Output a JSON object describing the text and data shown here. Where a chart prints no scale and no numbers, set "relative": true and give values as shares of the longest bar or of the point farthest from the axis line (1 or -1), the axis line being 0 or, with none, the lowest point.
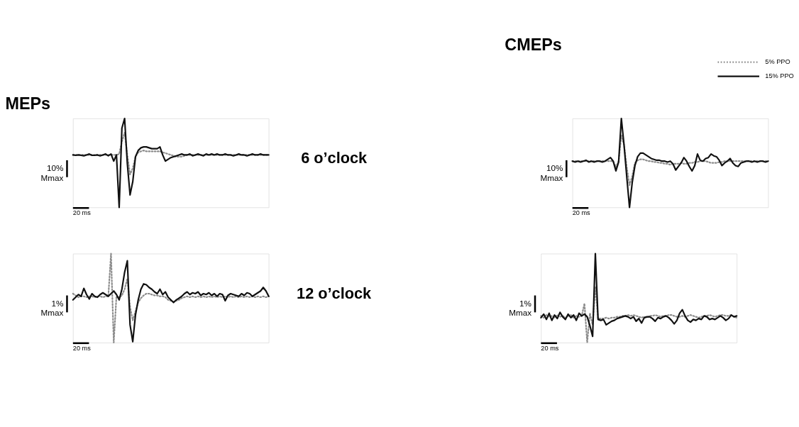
{
  "chart_data": [
    {
      "type": "line",
      "title": "MEPs",
      "relative": true,
      "tick_labels": false,
      "annotations": [
        "10%\nMmax",
        "20 ms",
        "6 o’clock"
      ],
      "categories": [
        null,
        null,
        null,
        null,
        null,
        null,
        null,
        null,
        null,
        null,
        null,
        null,
        null,
        null,
        null,
        null,
        null,
        null,
        null,
        null,
        null,
        null,
        null,
        null,
        null,
        null,
        null,
        null,
        null,
        null,
        null,
        null,
        null,
        null,
        null,
        null,
        null,
        null,
        null,
        null,
        null,
        null,
        null,
        null,
        null,
        null,
        null,
        null,
        null,
        null,
        null,
        null,
        null,
        null,
        null,
        null,
        null,
        null,
        null,
        null,
        null,
        null,
        null,
        null,
        null,
        null,
        null,
        null,
        null,
        null,
        null,
        null,
        null
      ],
      "series": [
        {
          "color": "#8c8c8c",
          "line_style": "dotted",
          "values": [
            0.59,
            0.59,
            0.59,
            0.59,
            0.59,
            0.59,
            0.59,
            0.59,
            0.59,
            0.59,
            0.59,
            0.59,
            0.59,
            0.59,
            0.59,
            0.59,
            0.59,
            0.6,
            0.74,
            0.84,
            0.59,
            0.37,
            0.44,
            0.57,
            0.62,
            0.63,
            0.64,
            0.63,
            0.63,
            0.63,
            0.63,
            0.63,
            0.63,
            0.62,
            0.61,
            0.6,
            0.59,
            0.58,
            0.57,
            0.57,
            0.57,
            0.58,
            0.59,
            0.59,
            0.59,
            0.59,
            0.59,
            0.59,
            0.59,
            0.59,
            0.59,
            0.59,
            0.59,
            0.59,
            0.59,
            0.59,
            0.59,
            0.59,
            0.59,
            0.59,
            0.59,
            0.59,
            0.59,
            0.59,
            0.59,
            0.59,
            0.59,
            0.59,
            0.59,
            0.59,
            0.59,
            0.59,
            0.59
          ]
        },
        {
          "color": "#111111",
          "line_style": "solid",
          "values": [
            0.59,
            0.585,
            0.59,
            0.585,
            0.58,
            0.59,
            0.6,
            0.585,
            0.585,
            0.59,
            0.58,
            0.59,
            0.6,
            0.58,
            0.6,
            0.52,
            0.59,
            0,
            0.89,
            1,
            0.49,
            0.14,
            0.29,
            0.57,
            0.64,
            0.67,
            0.68,
            0.68,
            0.67,
            0.66,
            0.66,
            0.66,
            0.68,
            0.59,
            0.52,
            0.54,
            0.56,
            0.57,
            0.58,
            0.59,
            0.6,
            0.59,
            0.59,
            0.6,
            0.58,
            0.59,
            0.6,
            0.59,
            0.58,
            0.6,
            0.59,
            0.6,
            0.59,
            0.6,
            0.59,
            0.59,
            0.6,
            0.59,
            0.59,
            0.58,
            0.59,
            0.6,
            0.59,
            0.59,
            0.58,
            0.59,
            0.6,
            0.59,
            0.59,
            0.6,
            0.59,
            0.59,
            0.59
          ]
        }
      ]
    },
    {
      "type": "line",
      "title": "CMEPs",
      "relative": true,
      "tick_labels": false,
      "legend": "top right",
      "annotations": [
        "10%\nMmax",
        "20 ms"
      ],
      "categories": [
        null,
        null,
        null,
        null,
        null,
        null,
        null,
        null,
        null,
        null,
        null,
        null,
        null,
        null,
        null,
        null,
        null,
        null,
        null,
        null,
        null,
        null,
        null,
        null,
        null,
        null,
        null,
        null,
        null,
        null,
        null,
        null,
        null,
        null,
        null,
        null,
        null,
        null,
        null,
        null,
        null,
        null,
        null,
        null,
        null,
        null,
        null,
        null,
        null,
        null,
        null,
        null,
        null,
        null,
        null,
        null,
        null,
        null,
        null,
        null,
        null,
        null,
        null,
        null,
        null,
        null,
        null,
        null,
        null,
        null,
        null,
        null,
        null
      ],
      "series": [
        {
          "name": "5% PPO",
          "color": "#8c8c8c",
          "line_style": "dotted",
          "values": [
            0.52,
            0.52,
            0.52,
            0.52,
            0.52,
            0.52,
            0.52,
            0.52,
            0.52,
            0.52,
            0.52,
            0.52,
            0.52,
            0.52,
            0.52,
            0.52,
            0.45,
            0.52,
            0.81,
            0.7,
            0.45,
            0.25,
            0.35,
            0.5,
            0.53,
            0.54,
            0.54,
            0.53,
            0.52,
            0.52,
            0.51,
            0.51,
            0.5,
            0.5,
            0.49,
            0.49,
            0.48,
            0.49,
            0.49,
            0.49,
            0.5,
            0.49,
            0.49,
            0.5,
            0.5,
            0.51,
            0.51,
            0.52,
            0.52,
            0.52,
            0.51,
            0.5,
            0.5,
            0.5,
            0.51,
            0.51,
            0.52,
            0.52,
            0.52,
            0.52,
            0.52,
            0.52,
            0.52,
            0.52,
            0.52,
            0.52,
            0.52,
            0.52,
            0.52,
            0.52,
            0.52,
            0.52,
            0.52
          ]
        },
        {
          "name": "15% PPO",
          "color": "#111111",
          "line_style": "solid",
          "values": [
            0.52,
            0.51,
            0.52,
            0.51,
            0.52,
            0.53,
            0.51,
            0.52,
            0.51,
            0.52,
            0.52,
            0.51,
            0.52,
            0.54,
            0.56,
            0.52,
            0.41,
            0.51,
            1,
            0.7,
            0.34,
            0,
            0.28,
            0.47,
            0.57,
            0.61,
            0.61,
            0.59,
            0.57,
            0.55,
            0.54,
            0.53,
            0.53,
            0.52,
            0.52,
            0.51,
            0.52,
            0.49,
            0.42,
            0.46,
            0.5,
            0.56,
            0.52,
            0.46,
            0.41,
            0.47,
            0.6,
            0.53,
            0.52,
            0.55,
            0.56,
            0.6,
            0.58,
            0.57,
            0.53,
            0.47,
            0.5,
            0.52,
            0.55,
            0.5,
            0.47,
            0.46,
            0.5,
            0.51,
            0.52,
            0.52,
            0.51,
            0.52,
            0.51,
            0.52,
            0.52,
            0.51,
            0.52
          ]
        }
      ]
    },
    {
      "type": "line",
      "relative": true,
      "tick_labels": false,
      "annotations": [
        "1%\nMmax",
        "20 ms",
        "12 o’clock"
      ],
      "categories": [
        null,
        null,
        null,
        null,
        null,
        null,
        null,
        null,
        null,
        null,
        null,
        null,
        null,
        null,
        null,
        null,
        null,
        null,
        null,
        null,
        null,
        null,
        null,
        null,
        null,
        null,
        null,
        null,
        null,
        null,
        null,
        null,
        null,
        null,
        null,
        null,
        null,
        null,
        null,
        null,
        null,
        null,
        null,
        null,
        null,
        null,
        null,
        null,
        null,
        null,
        null,
        null,
        null,
        null,
        null,
        null,
        null,
        null,
        null,
        null,
        null,
        null,
        null,
        null,
        null,
        null,
        null,
        null,
        null,
        null,
        null,
        null,
        null
      ],
      "series": [
        {
          "color": "#8c8c8c",
          "line_style": "dotted",
          "values": [
            0.55,
            0.53,
            0.51,
            0.52,
            0.52,
            0.51,
            0.52,
            0.52,
            0.51,
            0.52,
            0.52,
            0.51,
            0.52,
            0.52,
            1,
            0,
            0.52,
            0.51,
            0.53,
            0.6,
            0.72,
            0.4,
            0.25,
            0.35,
            0.45,
            0.5,
            0.53,
            0.55,
            0.55,
            0.54,
            0.53,
            0.53,
            0.52,
            0.52,
            0.51,
            0.48,
            0.47,
            0.46,
            0.47,
            0.48,
            0.5,
            0.51,
            0.52,
            0.51,
            0.52,
            0.51,
            0.52,
            0.51,
            0.52,
            0.51,
            0.52,
            0.51,
            0.52,
            0.51,
            0.52,
            0.51,
            0.52,
            0.51,
            0.52,
            0.51,
            0.52,
            0.51,
            0.52,
            0.51,
            0.52,
            0.51,
            0.52,
            0.51,
            0.52,
            0.51,
            0.52,
            0.51,
            0.52
          ]
        },
        {
          "color": "#111111",
          "line_style": "solid",
          "values": [
            0.48,
            0.51,
            0.54,
            0.52,
            0.61,
            0.54,
            0.49,
            0.55,
            0.52,
            0.51,
            0.54,
            0.56,
            0.54,
            0.52,
            0.55,
            0.58,
            0.54,
            0.48,
            0.6,
            0.79,
            0.92,
            0.2,
            0.01,
            0.31,
            0.48,
            0.6,
            0.66,
            0.65,
            0.62,
            0.6,
            0.57,
            0.55,
            0.6,
            0.54,
            0.57,
            0.51,
            0.48,
            0.45,
            0.48,
            0.5,
            0.52,
            0.55,
            0.57,
            0.54,
            0.56,
            0.55,
            0.57,
            0.53,
            0.55,
            0.54,
            0.56,
            0.53,
            0.55,
            0.52,
            0.55,
            0.54,
            0.47,
            0.53,
            0.55,
            0.54,
            0.53,
            0.52,
            0.55,
            0.53,
            0.56,
            0.55,
            0.52,
            0.54,
            0.56,
            0.58,
            0.62,
            0.58,
            0.52
          ]
        }
      ]
    },
    {
      "type": "line",
      "relative": true,
      "tick_labels": false,
      "annotations": [
        "1%\nMmax",
        "20 ms"
      ],
      "categories": [
        null,
        null,
        null,
        null,
        null,
        null,
        null,
        null,
        null,
        null,
        null,
        null,
        null,
        null,
        null,
        null,
        null,
        null,
        null,
        null,
        null,
        null,
        null,
        null,
        null,
        null,
        null,
        null,
        null,
        null,
        null,
        null,
        null,
        null,
        null,
        null,
        null,
        null,
        null,
        null,
        null,
        null,
        null,
        null,
        null,
        null,
        null,
        null,
        null,
        null,
        null,
        null,
        null,
        null,
        null,
        null,
        null,
        null,
        null,
        null,
        null,
        null,
        null,
        null,
        null,
        null,
        null,
        null,
        null,
        null,
        null,
        null,
        null
      ],
      "series": [
        {
          "color": "#8c8c8c",
          "line_style": "dotted",
          "values": [
            0.3,
            0.28,
            0.31,
            0.29,
            0.3,
            0.28,
            0.31,
            0.29,
            0.3,
            0.28,
            0.3,
            0.31,
            0.28,
            0.3,
            0.29,
            0.3,
            0.44,
            0,
            0.33,
            0.2,
            0.63,
            0.27,
            0.27,
            0.27,
            0.28,
            0.27,
            0.28,
            0.28,
            0.29,
            0.29,
            0.3,
            0.3,
            0.31,
            0.3,
            0.31,
            0.3,
            0.29,
            0.28,
            0.29,
            0.28,
            0.3,
            0.3,
            0.31,
            0.3,
            0.29,
            0.3,
            0.3,
            0.31,
            0.31,
            0.3,
            0.29,
            0.29,
            0.3,
            0.29,
            0.3,
            0.31,
            0.3,
            0.29,
            0.28,
            0.29,
            0.3,
            0.3,
            0.31,
            0.3,
            0.29,
            0.3,
            0.31,
            0.31,
            0.3,
            0.3,
            0.31,
            0.29,
            0.28
          ]
        },
        {
          "color": "#111111",
          "line_style": "solid",
          "values": [
            0.28,
            0.32,
            0.26,
            0.33,
            0.25,
            0.31,
            0.27,
            0.34,
            0.29,
            0.26,
            0.32,
            0.28,
            0.31,
            0.25,
            0.33,
            0.3,
            0.32,
            0.29,
            0.19,
            0.07,
            1,
            0.26,
            0.25,
            0.26,
            0.2,
            0.22,
            0.24,
            0.25,
            0.27,
            0.28,
            0.29,
            0.3,
            0.29,
            0.27,
            0.29,
            0.24,
            0.27,
            0.22,
            0.28,
            0.29,
            0.29,
            0.27,
            0.24,
            0.28,
            0.27,
            0.29,
            0.3,
            0.28,
            0.25,
            0.21,
            0.25,
            0.33,
            0.37,
            0.3,
            0.25,
            0.23,
            0.26,
            0.25,
            0.27,
            0.26,
            0.3,
            0.29,
            0.26,
            0.27,
            0.26,
            0.28,
            0.3,
            0.28,
            0.25,
            0.27,
            0.31,
            0.29,
            0.3
          ]
        }
      ]
    }
  ]
}
